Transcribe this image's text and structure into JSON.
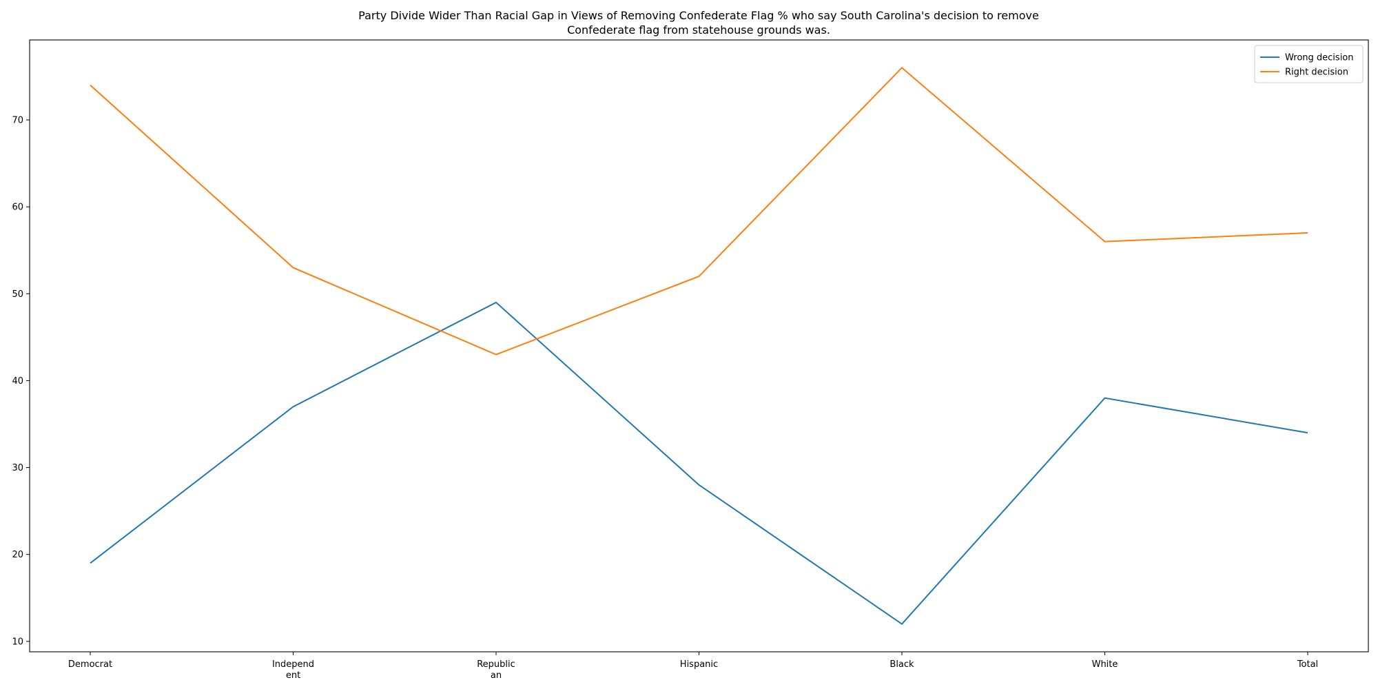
{
  "chart_data": {
    "type": "line",
    "title_lines": [
      "Party Divide Wider Than Racial Gap in Views of Removing Confederate Flag % who say South Carolina's decision to remove",
      "Confederate flag from statehouse grounds was."
    ],
    "xlabel": "",
    "ylabel": "",
    "categories": [
      "Democrat",
      "Independent",
      "Republican",
      "Hispanic",
      "Black",
      "White",
      "Total"
    ],
    "category_display": [
      [
        "Democrat"
      ],
      [
        "Independ",
        "ent"
      ],
      [
        "Republic",
        "an"
      ],
      [
        "Hispanic"
      ],
      [
        "Black"
      ],
      [
        "White"
      ],
      [
        "Total"
      ]
    ],
    "series": [
      {
        "name": "Wrong decision",
        "color": "#1f77b4",
        "values": [
          19,
          37,
          49,
          28,
          12,
          38,
          34
        ]
      },
      {
        "name": "Right decision",
        "color": "#ff7f0e",
        "values": [
          74,
          53,
          43,
          52,
          76,
          56,
          57
        ]
      }
    ],
    "ylim": [
      8.8,
      79.2
    ],
    "yticks": [
      "10",
      "20",
      "30",
      "40",
      "50",
      "60",
      "70"
    ],
    "grid": false,
    "legend_position": "top-right"
  }
}
